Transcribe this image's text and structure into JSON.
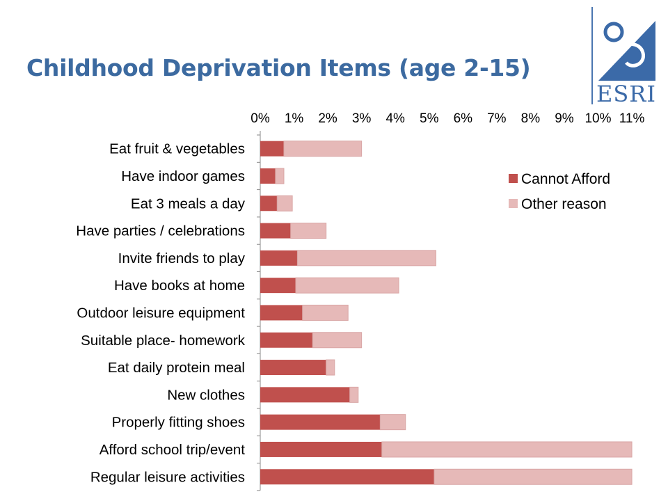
{
  "slide": {
    "title": "Childhood Deprivation Items (age 2-15)"
  },
  "logo": {
    "text": "ESRI",
    "color": "#3b6aa8"
  },
  "chart_data": {
    "type": "bar",
    "orientation": "horizontal",
    "stacked": true,
    "title": "",
    "xlabel": "",
    "ylabel": "",
    "xlim": [
      0,
      11
    ],
    "x_ticks": [
      "0%",
      "1%",
      "2%",
      "3%",
      "4%",
      "5%",
      "6%",
      "7%",
      "8%",
      "9%",
      "10%",
      "11%"
    ],
    "x_axis_position": "top",
    "grid": false,
    "legend_position": "top-right",
    "categories": [
      "Eat fruit & vegetables",
      "Have indoor games",
      "Eat 3 meals a day",
      "Have parties / celebrations",
      "Invite friends to play",
      "Have books at home",
      "Outdoor leisure equipment",
      "Suitable place- homework",
      "Eat daily protein meal",
      "New clothes",
      "Properly fitting shoes",
      "Afford school trip/event",
      "Regular leisure activities"
    ],
    "series": [
      {
        "name": "Cannot Afford",
        "color": "#c0504d",
        "values": [
          0.7,
          0.45,
          0.5,
          0.9,
          1.1,
          1.05,
          1.25,
          1.55,
          1.95,
          2.65,
          3.55,
          3.6,
          5.15
        ]
      },
      {
        "name": "Other reason",
        "color": "#e6b9b8",
        "values": [
          2.3,
          0.25,
          0.45,
          1.05,
          4.1,
          3.05,
          1.35,
          1.45,
          0.25,
          0.25,
          0.75,
          7.4,
          5.85
        ]
      }
    ]
  }
}
